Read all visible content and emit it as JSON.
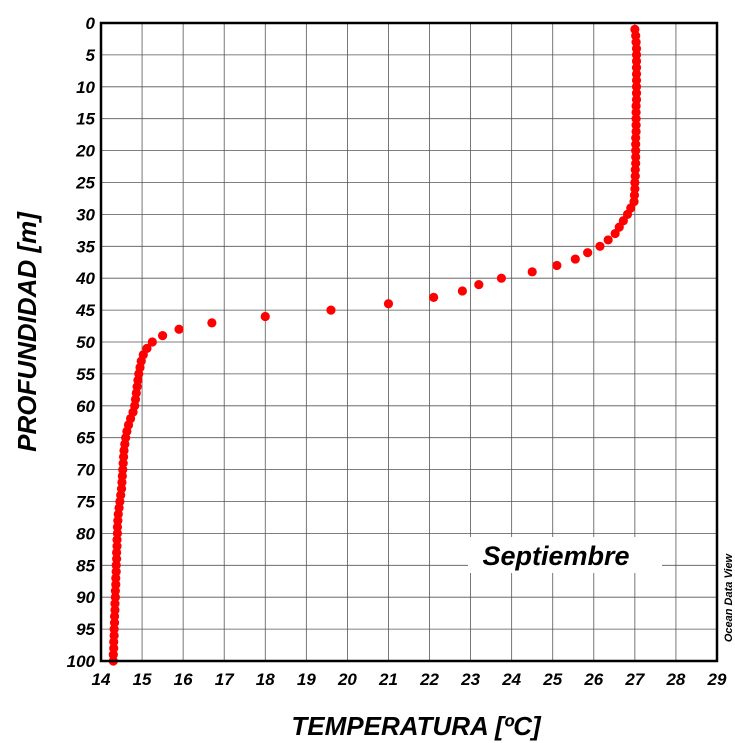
{
  "chart_data": {
    "type": "scatter",
    "title": "",
    "xlabel": "TEMPERATURA [ºC]",
    "ylabel": "PROFUNDIDAD [m]",
    "xlim": [
      14,
      29
    ],
    "ylim": [
      100,
      0
    ],
    "y_inverted": true,
    "grid": true,
    "x_ticks": [
      14,
      15,
      16,
      17,
      18,
      19,
      20,
      21,
      22,
      23,
      24,
      25,
      26,
      27,
      28,
      29
    ],
    "y_ticks": [
      0,
      5,
      10,
      15,
      20,
      25,
      30,
      35,
      40,
      45,
      50,
      55,
      60,
      65,
      70,
      75,
      80,
      85,
      90,
      95,
      100
    ],
    "annotation": "Septiembre",
    "watermark": "Ocean Data View",
    "marker_color": "#ff0000",
    "series": [
      {
        "points": [
          [
            27.0,
            1
          ],
          [
            27.02,
            2
          ],
          [
            27.03,
            3
          ],
          [
            27.04,
            4
          ],
          [
            27.04,
            5
          ],
          [
            27.04,
            6
          ],
          [
            27.04,
            7
          ],
          [
            27.04,
            8
          ],
          [
            27.04,
            9
          ],
          [
            27.04,
            10
          ],
          [
            27.04,
            11
          ],
          [
            27.04,
            12
          ],
          [
            27.03,
            13
          ],
          [
            27.03,
            14
          ],
          [
            27.03,
            15
          ],
          [
            27.03,
            16
          ],
          [
            27.03,
            17
          ],
          [
            27.02,
            18
          ],
          [
            27.02,
            19
          ],
          [
            27.02,
            20
          ],
          [
            27.02,
            21
          ],
          [
            27.02,
            22
          ],
          [
            27.01,
            23
          ],
          [
            27.01,
            24
          ],
          [
            27.0,
            25
          ],
          [
            27.0,
            26
          ],
          [
            26.99,
            27
          ],
          [
            26.98,
            28
          ],
          [
            26.9,
            29
          ],
          [
            26.82,
            30
          ],
          [
            26.72,
            31
          ],
          [
            26.62,
            32
          ],
          [
            26.52,
            33
          ],
          [
            26.35,
            34
          ],
          [
            26.15,
            35
          ],
          [
            25.85,
            36
          ],
          [
            25.55,
            37
          ],
          [
            25.1,
            38
          ],
          [
            24.5,
            39
          ],
          [
            23.75,
            40
          ],
          [
            23.2,
            41
          ],
          [
            22.8,
            42
          ],
          [
            22.1,
            43
          ],
          [
            21.0,
            44
          ],
          [
            19.6,
            45
          ],
          [
            18.0,
            46
          ],
          [
            16.7,
            47
          ],
          [
            15.9,
            48
          ],
          [
            15.5,
            49
          ],
          [
            15.25,
            50
          ],
          [
            15.12,
            51
          ],
          [
            15.03,
            52
          ],
          [
            14.98,
            53
          ],
          [
            14.95,
            54
          ],
          [
            14.92,
            55
          ],
          [
            14.9,
            56
          ],
          [
            14.88,
            57
          ],
          [
            14.86,
            58
          ],
          [
            14.84,
            59
          ],
          [
            14.82,
            60
          ],
          [
            14.78,
            61
          ],
          [
            14.72,
            62
          ],
          [
            14.67,
            63
          ],
          [
            14.63,
            64
          ],
          [
            14.6,
            65
          ],
          [
            14.58,
            66
          ],
          [
            14.56,
            67
          ],
          [
            14.55,
            68
          ],
          [
            14.54,
            69
          ],
          [
            14.53,
            70
          ],
          [
            14.52,
            71
          ],
          [
            14.51,
            72
          ],
          [
            14.5,
            73
          ],
          [
            14.48,
            74
          ],
          [
            14.46,
            75
          ],
          [
            14.44,
            76
          ],
          [
            14.42,
            77
          ],
          [
            14.41,
            78
          ],
          [
            14.4,
            79
          ],
          [
            14.4,
            80
          ],
          [
            14.39,
            81
          ],
          [
            14.39,
            82
          ],
          [
            14.38,
            83
          ],
          [
            14.38,
            84
          ],
          [
            14.37,
            85
          ],
          [
            14.37,
            86
          ],
          [
            14.36,
            87
          ],
          [
            14.36,
            88
          ],
          [
            14.35,
            89
          ],
          [
            14.35,
            90
          ],
          [
            14.34,
            91
          ],
          [
            14.34,
            92
          ],
          [
            14.33,
            93
          ],
          [
            14.33,
            94
          ],
          [
            14.32,
            95
          ],
          [
            14.32,
            96
          ],
          [
            14.31,
            97
          ],
          [
            14.31,
            98
          ],
          [
            14.3,
            99
          ],
          [
            14.3,
            100
          ]
        ]
      }
    ]
  }
}
